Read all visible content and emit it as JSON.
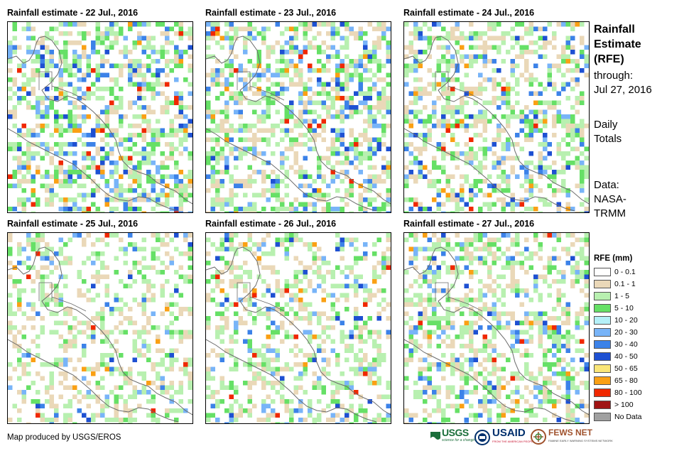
{
  "panels": [
    {
      "title": "Rainfall estimate - 22 Jul., 2016"
    },
    {
      "title": "Rainfall estimate - 23 Jul., 2016"
    },
    {
      "title": "Rainfall estimate - 24 Jul., 2016"
    },
    {
      "title": "Rainfall estimate - 25 Jul., 2016"
    },
    {
      "title": "Rainfall estimate - 26 Jul., 2016"
    },
    {
      "title": "Rainfall estimate - 27 Jul., 2016"
    }
  ],
  "sidebar": {
    "title_line1": "Rainfall",
    "title_line2": "Estimate",
    "title_line3": "(RFE)",
    "through_label": "through:",
    "through_date": "Jul 27, 2016",
    "totals_line1": "Daily",
    "totals_line2": "Totals",
    "data_line1": "Data:",
    "data_line2": "NASA-",
    "data_line3": "TRMM"
  },
  "legend": {
    "title": "RFE (mm)",
    "items": [
      {
        "label": "0 - 0.1",
        "color": "#ffffff"
      },
      {
        "label": "0.1 - 1",
        "color": "#ead8b8"
      },
      {
        "label": "1 - 5",
        "color": "#b8f0b0"
      },
      {
        "label": "5 - 10",
        "color": "#66e066"
      },
      {
        "label": "10 - 20",
        "color": "#b4f0f8"
      },
      {
        "label": "20 - 30",
        "color": "#78b4f8"
      },
      {
        "label": "30 - 40",
        "color": "#3c82e8"
      },
      {
        "label": "40 - 50",
        "color": "#1e50d2"
      },
      {
        "label": "50 - 65",
        "color": "#fae678"
      },
      {
        "label": "65 - 80",
        "color": "#faa014"
      },
      {
        "label": "80 - 100",
        "color": "#f02800"
      },
      {
        "label": "> 100",
        "color": "#a01414"
      },
      {
        "label": "No Data",
        "color": "#a0a0a0"
      }
    ]
  },
  "footer": {
    "credit": "Map produced by USGS/EROS",
    "usgs": "USGS",
    "usgs_tagline": "science for a changing world",
    "usaid": "USAID",
    "usaid_tagline": "FROM THE AMERICAN PEOPLE",
    "fews": "FEWS NET",
    "fews_tagline": "FAMINE EARLY WARNING SYSTEMS NETWORK"
  }
}
